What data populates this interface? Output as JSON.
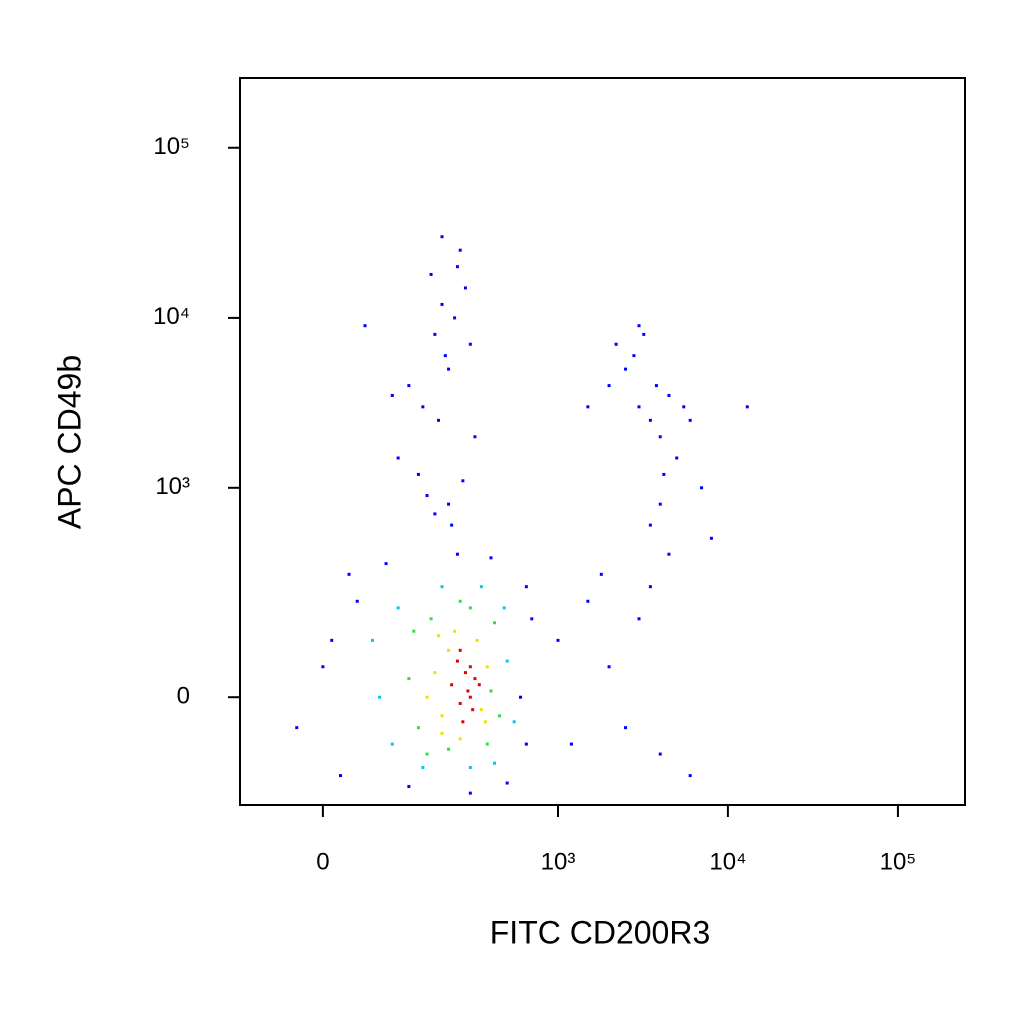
{
  "chart_data": {
    "type": "scatter",
    "x_label": "FITC CD200R3",
    "y_label": "APC CD49b",
    "xscale": "biexponential",
    "yscale": "biexponential",
    "xlim": [
      -114,
      248000
    ],
    "ylim": [
      -240,
      257000
    ],
    "xticks": [
      0,
      {
        "value": 1000,
        "label": "10³"
      },
      {
        "value": 10000,
        "label": "10⁴"
      },
      {
        "value": 100000,
        "label": "10⁵"
      }
    ],
    "yticks": [
      0,
      {
        "value": 1000,
        "label": "10³"
      },
      {
        "value": 10000,
        "label": "10⁴"
      },
      {
        "value": 100000,
        "label": "10⁵"
      }
    ],
    "series": [
      {
        "color": "#0000ff",
        "x": [
          -30,
          0,
          20,
          40,
          600,
          650,
          700,
          30,
          80,
          250,
          400,
          120,
          300,
          500,
          650,
          10,
          100,
          150,
          180,
          200,
          220,
          250,
          280,
          160,
          190,
          210,
          240,
          120,
          300,
          260,
          170,
          230,
          140,
          200,
          320,
          90,
          50,
          180,
          220,
          270,
          2000,
          2500,
          3000,
          3500,
          4000,
          4500,
          5000,
          2800,
          3200,
          3800,
          4200,
          6000,
          7000,
          2200,
          3000,
          4000,
          5500,
          3500,
          4500,
          8000,
          13000,
          1500,
          1000,
          1200,
          1500,
          2000,
          2500,
          3000,
          4000,
          6000,
          1800,
          3500
        ],
        "values": [
          -50,
          50,
          -150,
          200,
          0,
          -80,
          150,
          300,
          350,
          400,
          380,
          -180,
          -200,
          -170,
          250,
          100,
          1500,
          3000,
          8000,
          12000,
          5000,
          20000,
          15000,
          900,
          2500,
          6000,
          10000,
          4000,
          7000,
          25000,
          18000,
          600,
          1200,
          30000,
          2000,
          3500,
          9000,
          700,
          800,
          1100,
          4000,
          5000,
          3000,
          2500,
          2000,
          3500,
          1500,
          6000,
          8000,
          4000,
          1200,
          2500,
          1000,
          7000,
          9000,
          800,
          3000,
          600,
          400,
          500,
          3000,
          3000,
          100,
          -80,
          200,
          50,
          -50,
          150,
          -100,
          -150,
          300,
          250
        ]
      },
      {
        "color": "#00c8f0",
        "x": [
          70,
          90,
          500,
          550,
          100,
          200,
          350,
          480,
          60,
          150,
          300,
          420
        ],
        "values": [
          0,
          -80,
          60,
          -40,
          180,
          250,
          250,
          180,
          100,
          -130,
          -130,
          -120
        ]
      },
      {
        "color": "#30e040",
        "x": [
          120,
          140,
          400,
          450,
          170,
          300,
          220,
          130,
          420,
          260,
          380,
          160
        ],
        "values": [
          30,
          -50,
          10,
          -30,
          150,
          180,
          -90,
          120,
          140,
          200,
          -80,
          -100
        ]
      },
      {
        "color": "#f0e000",
        "x": [
          160,
          180,
          200,
          220,
          350,
          380,
          240,
          200,
          260,
          330,
          190,
          370
        ],
        "values": [
          0,
          40,
          -30,
          80,
          -20,
          50,
          120,
          -60,
          -70,
          100,
          110,
          -40
        ]
      },
      {
        "color": "#e00000",
        "x": [
          230,
          260,
          280,
          300,
          320,
          250,
          270,
          290,
          310,
          340,
          260,
          300
        ],
        "values": [
          20,
          -10,
          40,
          0,
          30,
          60,
          -40,
          10,
          -20,
          20,
          80,
          50
        ]
      }
    ]
  }
}
